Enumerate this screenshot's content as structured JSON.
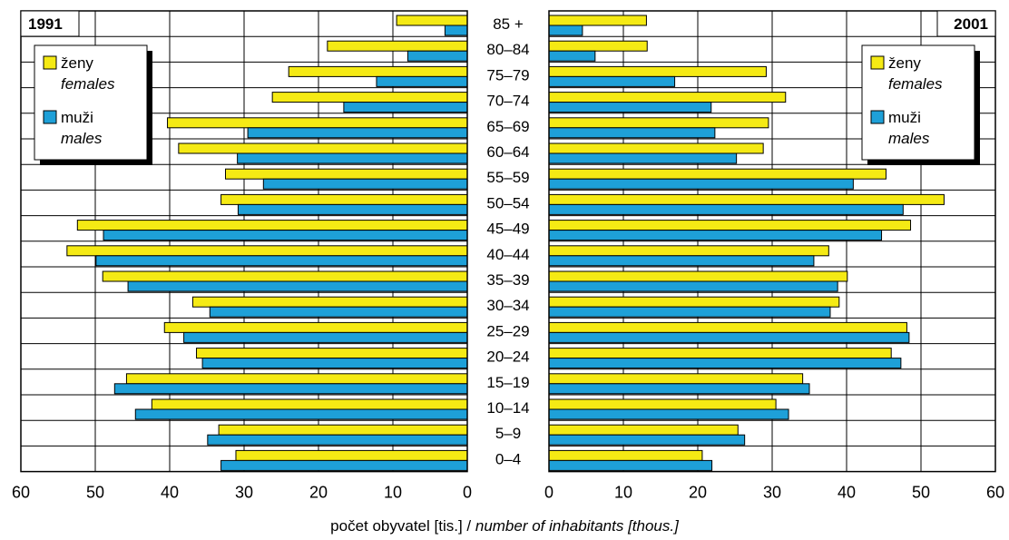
{
  "chart_data": {
    "type": "bar",
    "orientation": "horizontal",
    "subtype": "population-pyramid",
    "xlabel_plain": "počet obyvatel [tis.] / ",
    "xlabel_italic": "number of inhabitants [thous.]",
    "categories": [
      "85 +",
      "80–84",
      "75–79",
      "70–74",
      "65–69",
      "60–64",
      "55–59",
      "50–54",
      "45–49",
      "40–44",
      "35–39",
      "30–34",
      "25–29",
      "20–24",
      "15–19",
      "10–14",
      "5–9",
      "0–4"
    ],
    "xlim": [
      0,
      60
    ],
    "ticks": [
      "0",
      "10",
      "20",
      "30",
      "40",
      "50",
      "60"
    ],
    "grid": true,
    "colors": {
      "females": "#f5ea14",
      "males": "#1ea0d8"
    },
    "panels": [
      {
        "year": "1991",
        "side": "left",
        "legend": {
          "females": [
            "ženy",
            "females"
          ],
          "males": [
            "muži",
            "males"
          ]
        },
        "series": [
          {
            "name": "ženy / females",
            "values": [
              9.5,
              18.8,
              24,
              26.2,
              40.3,
              38.8,
              32.5,
              33.1,
              52.4,
              53.8,
              49,
              36.9,
              40.7,
              36.4,
              45.8,
              42.4,
              33.4,
              31.1
            ]
          },
          {
            "name": "muži / males",
            "values": [
              3,
              8,
              12.2,
              16.6,
              29.5,
              30.9,
              27.4,
              30.8,
              48.9,
              49.9,
              45.6,
              34.6,
              38.1,
              35.6,
              47.4,
              44.6,
              34.9,
              33.1
            ]
          }
        ]
      },
      {
        "year": "2001",
        "side": "right",
        "legend": {
          "females": [
            "ženy",
            "females"
          ],
          "males": [
            "muži",
            "males"
          ]
        },
        "series": [
          {
            "name": "ženy / females",
            "values": [
              13.1,
              13.2,
              29.2,
              31.8,
              29.5,
              28.8,
              45.3,
              53.1,
              48.6,
              37.6,
              40.1,
              39,
              48.1,
              46,
              34.1,
              30.5,
              25.4,
              20.6
            ]
          },
          {
            "name": "muži / males",
            "values": [
              4.5,
              6.2,
              16.9,
              21.8,
              22.3,
              25.2,
              40.9,
              47.6,
              44.7,
              35.6,
              38.8,
              37.8,
              48.4,
              47.3,
              35,
              32.2,
              26.3,
              21.9
            ]
          }
        ]
      }
    ]
  }
}
